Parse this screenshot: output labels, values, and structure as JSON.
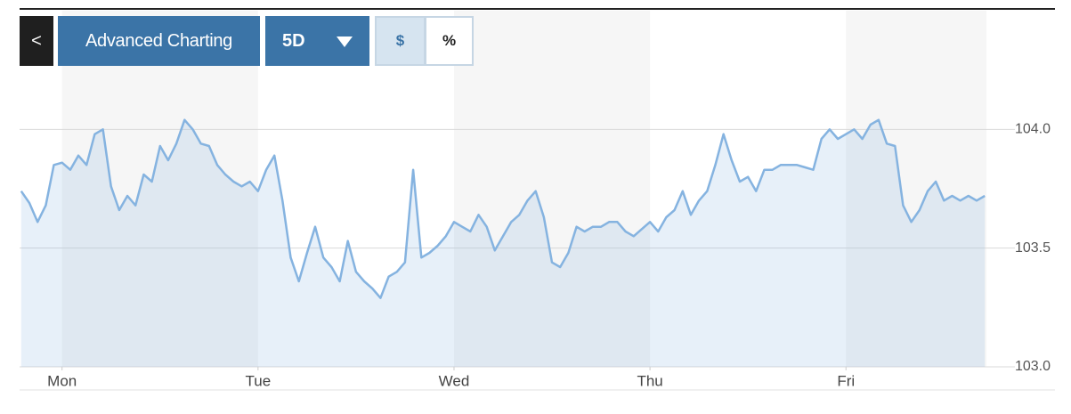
{
  "toolbar": {
    "back": "<",
    "title": "Advanced Charting",
    "range": "5D",
    "currency": "$",
    "percent": "%"
  },
  "chart_data": {
    "type": "line",
    "color": "#85b3e0",
    "grid": true,
    "xlim": [
      -5.2,
      113.2
    ],
    "xticks": [
      {
        "value": 0,
        "label": "Mon"
      },
      {
        "value": 24,
        "label": "Tue"
      },
      {
        "value": 48,
        "label": "Wed"
      },
      {
        "value": 72,
        "label": "Thu"
      },
      {
        "value": 96,
        "label": "Fri"
      }
    ],
    "ylim": [
      103.0,
      104.5
    ],
    "yticks": [
      {
        "value": 103,
        "label": "103.0"
      },
      {
        "value": 103.5,
        "label": "103.5"
      },
      {
        "value": 104,
        "label": "104.0"
      }
    ],
    "x": [
      -5,
      -4,
      -3,
      -2,
      -1,
      0,
      1,
      2,
      3,
      4,
      5,
      6,
      7,
      8,
      9,
      10,
      11,
      12,
      13,
      14,
      15,
      16,
      17,
      18,
      19,
      20,
      21,
      22,
      23,
      24,
      25,
      26,
      27,
      28,
      29,
      30,
      31,
      32,
      33,
      34,
      35,
      36,
      37,
      38,
      39,
      40,
      41,
      42,
      43,
      44,
      45,
      46,
      47,
      48,
      49,
      50,
      51,
      52,
      53,
      54,
      55,
      56,
      57,
      58,
      59,
      60,
      61,
      62,
      63,
      64,
      65,
      66,
      67,
      68,
      69,
      70,
      71,
      72,
      73,
      74,
      75,
      76,
      77,
      78,
      79,
      80,
      81,
      82,
      83,
      84,
      85,
      86,
      87,
      88,
      89,
      90,
      91,
      92,
      93,
      94,
      95,
      96,
      97,
      98,
      99,
      100,
      101,
      102,
      103,
      104,
      105,
      106,
      107,
      108,
      109,
      110,
      111,
      112,
      113
    ],
    "values": [
      103.74,
      103.69,
      103.61,
      103.68,
      103.85,
      103.86,
      103.83,
      103.89,
      103.85,
      103.98,
      104.0,
      103.76,
      103.66,
      103.72,
      103.68,
      103.81,
      103.78,
      103.93,
      103.87,
      103.94,
      104.04,
      104.0,
      103.94,
      103.93,
      103.85,
      103.81,
      103.78,
      103.76,
      103.78,
      103.74,
      103.83,
      103.89,
      103.7,
      103.46,
      103.36,
      103.48,
      103.59,
      103.46,
      103.42,
      103.36,
      103.53,
      103.4,
      103.36,
      103.33,
      103.29,
      103.38,
      103.4,
      103.44,
      103.83,
      103.46,
      103.48,
      103.51,
      103.55,
      103.61,
      103.59,
      103.57,
      103.64,
      103.59,
      103.49,
      103.55,
      103.61,
      103.64,
      103.7,
      103.74,
      103.63,
      103.44,
      103.42,
      103.48,
      103.59,
      103.57,
      103.59,
      103.59,
      103.61,
      103.61,
      103.57,
      103.55,
      103.58,
      103.61,
      103.57,
      103.63,
      103.66,
      103.74,
      103.64,
      103.7,
      103.74,
      103.85,
      103.98,
      103.87,
      103.78,
      103.8,
      103.74,
      103.83,
      103.83,
      103.85,
      103.85,
      103.85,
      103.84,
      103.83,
      103.96,
      104.0,
      103.96,
      103.98,
      104.0,
      103.96,
      104.02,
      104.04,
      103.94,
      103.93,
      103.68,
      103.61,
      103.66,
      103.74,
      103.78,
      103.7,
      103.72,
      103.7,
      103.72,
      103.7,
      103.72
    ]
  }
}
